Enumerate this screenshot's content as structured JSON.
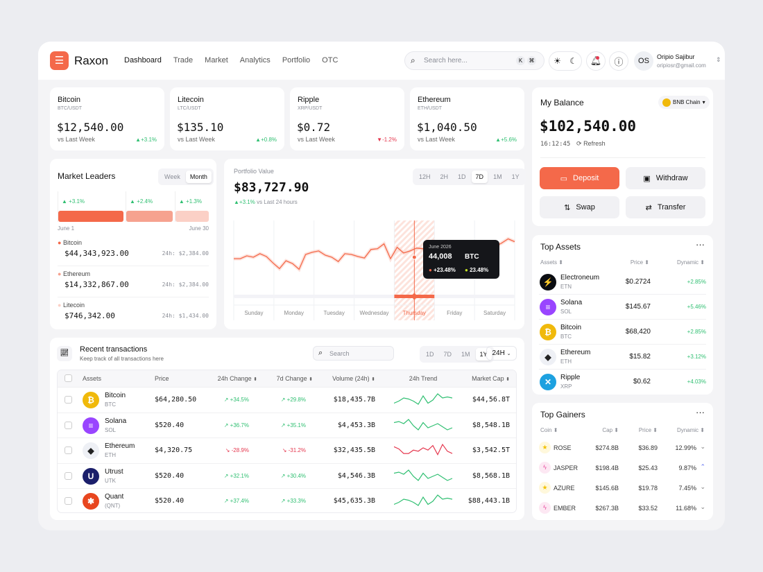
{
  "header": {
    "brand": "Raxon",
    "nav": [
      "Dashboard",
      "Trade",
      "Market",
      "Analytics",
      "Portfolio",
      "OTC"
    ],
    "active_nav": "Dashboard",
    "search_placeholder": "Search here...",
    "kbd": [
      "K",
      "⌘"
    ],
    "user": {
      "initials": "OS",
      "name": "Oripio Sajibur",
      "email": "oripiosr@gmail.com"
    }
  },
  "tickers": [
    {
      "name": "Bitcoin",
      "pair": "BTC/USDT",
      "price": "$12,540.00",
      "sub": "vs Last Week",
      "change": "+3.1%",
      "dir": "up"
    },
    {
      "name": "Litecoin",
      "pair": "LTC/USDT",
      "price": "$135.10",
      "sub": "vs Last Week",
      "change": "+0.8%",
      "dir": "up"
    },
    {
      "name": "Ripple",
      "pair": "XRP/USDT",
      "price": "$0.72",
      "sub": "vs Last Week",
      "change": "-1.2%",
      "dir": "down"
    },
    {
      "name": "Ethereum",
      "pair": "ETH/USDT",
      "price": "$1,040.50",
      "sub": "vs Last Week",
      "change": "+5.6%",
      "dir": "up"
    }
  ],
  "balance": {
    "title": "My Balance",
    "chain": "BNB Chain",
    "amount": "$102,540.00",
    "time": "16:12:45",
    "refresh": "Refresh",
    "deposit": "Deposit",
    "withdraw": "Withdraw",
    "swap": "Swap",
    "transfer": "Transfer"
  },
  "leaders": {
    "title": "Market Leaders",
    "tabs": [
      "Week",
      "Month"
    ],
    "active": "Month",
    "bars": [
      {
        "change": "+3.1%",
        "share": 45,
        "color": "#f4694a"
      },
      {
        "change": "+2.4%",
        "share": 32,
        "color": "#f6a28f"
      },
      {
        "change": "+1.3%",
        "share": 23,
        "color": "#fbd0c6"
      }
    ],
    "start": "June 1",
    "end": "June 30",
    "items": [
      {
        "name": "Bitcoin",
        "value": "$44,343,923.00",
        "h24": "24h: $2,384.00",
        "color": "#f4694a"
      },
      {
        "name": "Ethereum",
        "value": "$14,332,867.00",
        "h24": "24h: $2,384.00",
        "color": "#f6a28f"
      },
      {
        "name": "Litecoin",
        "value": "$746,342.00",
        "h24": "24h: $1,434.00",
        "color": "#fbd0c6"
      }
    ]
  },
  "portfolio": {
    "label": "Portfolio Value",
    "value": "$83,727.90",
    "change": "+3.1%",
    "change_sub": "vs Last 24 hours",
    "ranges": [
      "12H",
      "2H",
      "1D",
      "7D",
      "1M",
      "1Y"
    ],
    "active_range": "7D",
    "days": [
      "Sunday",
      "Monday",
      "Tuesday",
      "Wednesday",
      "Thursday",
      "Friday",
      "Saturday"
    ],
    "active_day": "Thursday",
    "tooltip": {
      "date": "June 2026",
      "value": "44,008",
      "symbol": "BTC",
      "a": "+23.48%",
      "b": "23.48%",
      "a_color": "#f4694a",
      "b_color": "#c5e323"
    },
    "line": [
      46,
      46,
      50,
      48,
      53,
      49,
      40,
      32,
      43,
      39,
      31,
      52,
      55,
      57,
      51,
      48,
      42,
      53,
      52,
      49,
      47,
      59,
      60,
      67,
      46,
      62,
      54,
      57,
      61,
      60,
      48,
      56,
      56,
      56,
      56,
      56,
      56,
      56,
      60,
      60,
      63,
      68,
      74,
      70
    ],
    "highlight_index": 30
  },
  "transactions": {
    "title": "Recent transactions",
    "subtitle": "Keep track of all transactions here",
    "search_placeholder": "Search",
    "ranges": [
      "1D",
      "7D",
      "1M",
      "1Y"
    ],
    "active_range": "1Y",
    "period": "24H",
    "columns": [
      "Assets",
      "Price",
      "24h Change",
      "7d Change",
      "Volume (24h)",
      "24h Trend",
      "Market Cap"
    ],
    "rows": [
      {
        "name": "Bitcoin",
        "sym": "BTC",
        "price": "$64,280.50",
        "c24": "+34.5%",
        "c7": "+29.8%",
        "vol": "$18,435.7B",
        "cap": "$44,56.8T",
        "dir": "up",
        "icon": "bitcoin-icon",
        "color": "#f0b90b",
        "glyph": "₿",
        "trend": [
          3,
          5,
          8,
          7,
          5,
          2,
          10,
          3,
          6,
          12,
          8,
          9,
          8
        ]
      },
      {
        "name": "Solana",
        "sym": "SOL",
        "price": "$520.40",
        "c24": "+36.7%",
        "c7": "+35.1%",
        "vol": "$4,453.3B",
        "cap": "$8,548.1B",
        "dir": "up",
        "icon": "solana-icon",
        "color": "#9945ff",
        "glyph": "≡",
        "trend": [
          9,
          10,
          8,
          12,
          6,
          2,
          9,
          4,
          6,
          8,
          5,
          2,
          4
        ]
      },
      {
        "name": "Ethereum",
        "sym": "ETH",
        "price": "$4,320.75",
        "c24": "-28.9%",
        "c7": "-31.2%",
        "vol": "$32,435.5B",
        "cap": "$3,542.5T",
        "dir": "down",
        "icon": "ethereum-icon",
        "color": "#eef0f5",
        "glyph": "◆",
        "trend": [
          9,
          7,
          3,
          3,
          6,
          5,
          8,
          6,
          10,
          2,
          11,
          5,
          3
        ]
      },
      {
        "name": "Utrust",
        "sym": "UTK",
        "price": "$520.40",
        "c24": "+32.1%",
        "c7": "+30.4%",
        "vol": "$4,546.3B",
        "cap": "$8,568.1B",
        "dir": "up",
        "icon": "utrust-icon",
        "color": "#1b1f6b",
        "glyph": "U",
        "trend": [
          9,
          10,
          8,
          12,
          6,
          2,
          9,
          4,
          6,
          8,
          5,
          2,
          4
        ]
      },
      {
        "name": "Quant",
        "sym": "(QNT)",
        "price": "$520.40",
        "c24": "+37.4%",
        "c7": "+33.3%",
        "vol": "$45,635.3B",
        "cap": "$88,443.1B",
        "dir": "up",
        "icon": "quant-icon",
        "color": "#e8461f",
        "glyph": "✱",
        "trend": [
          3,
          5,
          8,
          7,
          5,
          2,
          10,
          3,
          6,
          12,
          8,
          9,
          8
        ]
      }
    ]
  },
  "top_assets": {
    "title": "Top Assets",
    "columns": [
      "Assets",
      "Price",
      "Dynamic"
    ],
    "rows": [
      {
        "name": "Electroneum",
        "sym": "ETN",
        "price": "$0.2724",
        "dyn": "+2.85%",
        "color": "#0b0d12",
        "glyph": "⚡"
      },
      {
        "name": "Solana",
        "sym": "SOL",
        "price": "$145.67",
        "dyn": "+5.46%",
        "color": "#9945ff",
        "glyph": "≡"
      },
      {
        "name": "Bitcoin",
        "sym": "BTC",
        "price": "$68,420",
        "dyn": "+2.85%",
        "color": "#f0b90b",
        "glyph": "₿"
      },
      {
        "name": "Ethereum",
        "sym": "ETH",
        "price": "$15.82",
        "dyn": "+3.12%",
        "color": "#eef0f5",
        "glyph": "◆"
      },
      {
        "name": "Ripple",
        "sym": "XRP",
        "price": "$0.62",
        "dyn": "+4.03%",
        "color": "#1da1e0",
        "glyph": "✕"
      }
    ]
  },
  "top_gainers": {
    "title": "Top Gainers",
    "columns": [
      "Coin",
      "Cap",
      "Price",
      "Dynamic"
    ],
    "rows": [
      {
        "name": "ROSE",
        "cap": "$274.8B",
        "price": "$36.89",
        "dyn": "12.99%",
        "icon": "star",
        "trend": "down"
      },
      {
        "name": "JASPER",
        "cap": "$198.4B",
        "price": "$25.43",
        "dyn": "9.87%",
        "icon": "bolt",
        "trend": "up"
      },
      {
        "name": "AZURE",
        "cap": "$145.6B",
        "price": "$19.78",
        "dyn": "7.45%",
        "icon": "star",
        "trend": "down"
      },
      {
        "name": "EMBER",
        "cap": "$267.3B",
        "price": "$33.52",
        "dyn": "11.68%",
        "icon": "bolt",
        "trend": "down"
      }
    ]
  },
  "colors": {
    "accent": "#f4694a",
    "up": "#2fbf71",
    "down": "#e5384f"
  }
}
